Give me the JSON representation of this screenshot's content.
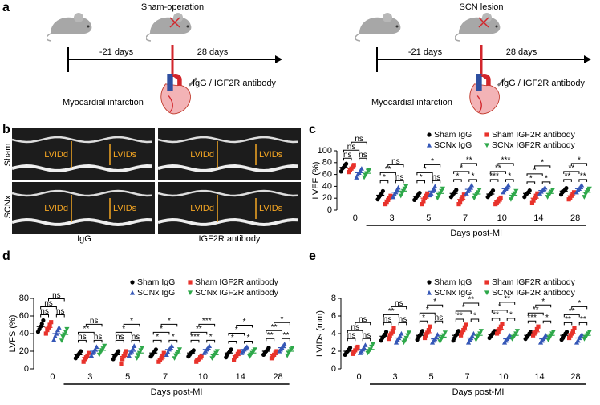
{
  "panels": {
    "labels": [
      "a",
      "b",
      "c",
      "d",
      "e"
    ],
    "a": {
      "groups": [
        {
          "title": "Sham-operation",
          "before": "-21 days",
          "after": "28 days",
          "treatment": "IgG / IGF2R antibody",
          "event": "Myocardial infarction"
        },
        {
          "title": "SCN lesion",
          "before": "-21 days",
          "after": "28 days",
          "treatment": "IgG / IGF2R antibody",
          "event": "Myocardial infarction"
        }
      ]
    },
    "b": {
      "rows": [
        "Sham",
        "SCNx"
      ],
      "columns": [
        "IgG",
        "IGF2R antibody"
      ],
      "measures": [
        "LVIDd",
        "LVIDs"
      ]
    }
  },
  "chart_data": [
    {
      "type": "dot",
      "ylabel": "LVEF (%)",
      "xlabel": "Days post-MI",
      "categories": [
        "0",
        "3",
        "5",
        "7",
        "10",
        "14",
        "28"
      ],
      "ylim": [
        0,
        100
      ],
      "yticks": [
        0,
        20,
        40,
        60,
        80,
        100
      ],
      "legend": "upper right",
      "series": [
        {
          "name": "Sham IgG",
          "color": "#000000",
          "marker": "circle",
          "values": [
            [
              65,
              70,
              72,
              76,
              78
            ],
            [
              18,
              22,
              25,
              28,
              32
            ],
            [
              17,
              20,
              23,
              26,
              29
            ],
            [
              22,
              25,
              28,
              31,
              34
            ],
            [
              22,
              25,
              27,
              30,
              33
            ],
            [
              22,
              26,
              28,
              30,
              33
            ],
            [
              26,
              30,
              32,
              34,
              37
            ]
          ],
          "means": [
            72,
            25,
            23,
            28,
            27,
            28,
            32
          ]
        },
        {
          "name": "Sham IGF2R antibody",
          "color": "#e8322b",
          "marker": "square",
          "values": [
            [
              64,
              68,
              70,
              73,
              76
            ],
            [
              10,
              14,
              17,
              20,
              24
            ],
            [
              10,
              15,
              20,
              24,
              28
            ],
            [
              10,
              14,
              18,
              22,
              26
            ],
            [
              10,
              13,
              15,
              18,
              21
            ],
            [
              12,
              16,
              20,
              24,
              28
            ],
            [
              18,
              21,
              24,
              27,
              30
            ]
          ],
          "means": [
            70,
            17,
            20,
            18,
            15,
            20,
            24
          ]
        },
        {
          "name": "SCNx IgG",
          "color": "#3557b7",
          "marker": "triangle-up",
          "values": [
            [
              55,
              60,
              63,
              66,
              70
            ],
            [
              22,
              27,
              30,
              34,
              38
            ],
            [
              25,
              28,
              32,
              36,
              40
            ],
            [
              28,
              32,
              35,
              38,
              42
            ],
            [
              30,
              33,
              36,
              38,
              42
            ],
            [
              28,
              31,
              33,
              35,
              38
            ],
            [
              30,
              34,
              36,
              39,
              42
            ]
          ],
          "means": [
            63,
            30,
            32,
            35,
            36,
            33,
            36
          ]
        },
        {
          "name": "SCNx IGF2R antibody",
          "color": "#2ea84a",
          "marker": "triangle-down",
          "values": [
            [
              55,
              59,
              62,
              66,
              68
            ],
            [
              24,
              28,
              32,
              36,
              40
            ],
            [
              20,
              25,
              28,
              32,
              36
            ],
            [
              20,
              24,
              27,
              30,
              34
            ],
            [
              18,
              22,
              25,
              28,
              32
            ],
            [
              22,
              25,
              28,
              31,
              34
            ],
            [
              22,
              27,
              30,
              33,
              36
            ]
          ],
          "means": [
            62,
            32,
            28,
            27,
            25,
            28,
            30
          ]
        }
      ],
      "brackets": [
        [
          "ns",
          "ns",
          "ns",
          "ns"
        ],
        [
          "*",
          "ns",
          "**",
          "ns"
        ],
        [
          "*",
          "ns",
          "*",
          "*"
        ],
        [
          "*",
          "*",
          "*",
          "**"
        ],
        [
          "***",
          "*",
          "**",
          "***"
        ],
        [
          "*",
          "*",
          "*",
          "*"
        ],
        [
          "**",
          "**",
          "**",
          "*"
        ]
      ]
    },
    {
      "type": "dot",
      "ylabel": "LVFS (%)",
      "xlabel": "Days post-MI",
      "categories": [
        "0",
        "3",
        "5",
        "7",
        "10",
        "14",
        "28"
      ],
      "ylim": [
        0,
        80
      ],
      "yticks": [
        0,
        20,
        40,
        60,
        80
      ],
      "legend": "upper right",
      "series": [
        {
          "name": "Sham IgG",
          "color": "#000000",
          "marker": "circle",
          "values": [
            [
              42,
              45,
              48,
              51,
              55
            ],
            [
              12,
              14,
              16,
              18,
              20
            ],
            [
              11,
              14,
              16,
              18,
              20
            ],
            [
              14,
              16,
              18,
              20,
              22
            ],
            [
              14,
              16,
              18,
              19,
              21
            ],
            [
              13,
              16,
              18,
              20,
              22
            ],
            [
              16,
              18,
              20,
              22,
              24
            ]
          ],
          "means": [
            48,
            16,
            16,
            18,
            18,
            18,
            20
          ]
        },
        {
          "name": "Sham IGF2R antibody",
          "color": "#e8322b",
          "marker": "square",
          "values": [
            [
              40,
              44,
              47,
              50,
              53
            ],
            [
              8,
              11,
              13,
              15,
              18
            ],
            [
              6,
              11,
              14,
              17,
              20
            ],
            [
              8,
              10,
              12,
              15,
              18
            ],
            [
              8,
              10,
              11,
              13,
              15
            ],
            [
              10,
              13,
              15,
              17,
              20
            ],
            [
              12,
              14,
              16,
              18,
              20
            ]
          ],
          "means": [
            47,
            13,
            14,
            12,
            11,
            15,
            16
          ]
        },
        {
          "name": "SCNx IgG",
          "color": "#3557b7",
          "marker": "triangle-up",
          "values": [
            [
              33,
              37,
              40,
              44,
              47
            ],
            [
              15,
              18,
              20,
              22,
              25
            ],
            [
              15,
              18,
              20,
              23,
              26
            ],
            [
              16,
              19,
              22,
              24,
              26
            ],
            [
              18,
              20,
              22,
              24,
              26
            ],
            [
              18,
              20,
              22,
              23,
              25
            ],
            [
              20,
              22,
              24,
              26,
              28
            ]
          ],
          "means": [
            40,
            20,
            20,
            22,
            22,
            22,
            24
          ]
        },
        {
          "name": "SCNx IGF2R antibody",
          "color": "#2ea84a",
          "marker": "triangle-down",
          "values": [
            [
              32,
              36,
              39,
              42,
              45
            ],
            [
              16,
              19,
              21,
              23,
              26
            ],
            [
              12,
              15,
              18,
              21,
              24
            ],
            [
              12,
              15,
              17,
              19,
              22
            ],
            [
              12,
              14,
              16,
              18,
              20
            ],
            [
              14,
              16,
              18,
              20,
              22
            ],
            [
              15,
              18,
              20,
              22,
              24
            ]
          ],
          "means": [
            39,
            21,
            18,
            17,
            16,
            18,
            20
          ]
        }
      ],
      "brackets": [
        [
          "ns",
          "ns",
          "ns",
          "ns"
        ],
        [
          "ns",
          "ns",
          "**",
          "ns"
        ],
        [
          "ns",
          "ns",
          "*",
          "*"
        ],
        [
          "*",
          "*",
          "*",
          "*"
        ],
        [
          "***",
          "*",
          "**",
          "***"
        ],
        [
          "*",
          "*",
          "*",
          "*"
        ],
        [
          "**",
          "**",
          "**",
          "*"
        ]
      ]
    },
    {
      "type": "dot",
      "ylabel": "LVIDs (mm)",
      "xlabel": "Days post-MI",
      "categories": [
        "0",
        "3",
        "5",
        "7",
        "10",
        "14",
        "28"
      ],
      "ylim": [
        0,
        8
      ],
      "yticks": [
        0,
        2,
        4,
        6,
        8
      ],
      "legend": "upper right",
      "series": [
        {
          "name": "Sham IgG",
          "color": "#000000",
          "marker": "circle",
          "values": [
            [
              1.6,
              1.8,
              2.0,
              2.2,
              2.4
            ],
            [
              3.2,
              3.5,
              3.7,
              3.9,
              4.2
            ],
            [
              3.3,
              3.6,
              3.8,
              4.0,
              4.3
            ],
            [
              3.2,
              3.5,
              3.8,
              4.0,
              4.3
            ],
            [
              3.5,
              3.7,
              3.9,
              4.1,
              4.3
            ],
            [
              3.4,
              3.6,
              3.8,
              4.0,
              4.2
            ],
            [
              3.3,
              3.5,
              3.8,
              4.0,
              4.2
            ]
          ],
          "means": [
            2.0,
            3.7,
            3.8,
            3.8,
            3.9,
            3.8,
            3.8
          ]
        },
        {
          "name": "Sham IGF2R antibody",
          "color": "#e8322b",
          "marker": "square",
          "values": [
            [
              1.7,
              1.9,
              2.1,
              2.3,
              2.5
            ],
            [
              3.4,
              3.7,
              4.0,
              4.3,
              4.6
            ],
            [
              3.5,
              3.8,
              4.1,
              4.4,
              4.8
            ],
            [
              3.8,
              4.1,
              4.4,
              4.7,
              5.0
            ],
            [
              4.0,
              4.2,
              4.5,
              4.8,
              5.1
            ],
            [
              3.8,
              4.0,
              4.2,
              4.5,
              4.8
            ],
            [
              3.5,
              3.8,
              4.0,
              4.3,
              4.6
            ]
          ],
          "means": [
            2.1,
            4.0,
            4.1,
            4.4,
            4.5,
            4.2,
            4.0
          ]
        },
        {
          "name": "SCNx IgG",
          "color": "#3557b7",
          "marker": "triangle-up",
          "values": [
            [
              1.8,
              2.0,
              2.2,
              2.4,
              2.7
            ],
            [
              3.0,
              3.3,
              3.5,
              3.7,
              4.0
            ],
            [
              3.0,
              3.2,
              3.4,
              3.6,
              3.9
            ],
            [
              3.0,
              3.3,
              3.5,
              3.7,
              4.0
            ],
            [
              3.0,
              3.2,
              3.4,
              3.6,
              3.8
            ],
            [
              3.0,
              3.2,
              3.4,
              3.6,
              3.8
            ],
            [
              3.0,
              3.2,
              3.5,
              3.7,
              3.9
            ]
          ],
          "means": [
            2.2,
            3.5,
            3.4,
            3.5,
            3.4,
            3.4,
            3.5
          ]
        },
        {
          "name": "SCNx IGF2R antibody",
          "color": "#2ea84a",
          "marker": "triangle-down",
          "values": [
            [
              1.8,
              2.0,
              2.2,
              2.5,
              2.8
            ],
            [
              3.0,
              3.2,
              3.5,
              3.8,
              4.1
            ],
            [
              3.1,
              3.4,
              3.6,
              3.8,
              4.1
            ],
            [
              3.3,
              3.6,
              3.8,
              4.0,
              4.3
            ],
            [
              3.4,
              3.6,
              3.8,
              4.0,
              4.3
            ],
            [
              3.3,
              3.5,
              3.8,
              4.0,
              4.2
            ],
            [
              3.4,
              3.6,
              3.8,
              4.0,
              4.2
            ]
          ],
          "means": [
            2.2,
            3.5,
            3.6,
            3.8,
            3.8,
            3.8,
            3.8
          ]
        }
      ],
      "brackets": [
        [
          "ns",
          "ns",
          "ns",
          "ns"
        ],
        [
          "ns",
          "ns",
          "**",
          "ns"
        ],
        [
          "*",
          "ns",
          "*",
          "*"
        ],
        [
          "**",
          "*",
          "*",
          "**"
        ],
        [
          "**",
          "*",
          "*",
          "**"
        ],
        [
          "***",
          "*",
          "**",
          "*"
        ],
        [
          "**",
          "**",
          "**",
          "*"
        ]
      ]
    }
  ]
}
